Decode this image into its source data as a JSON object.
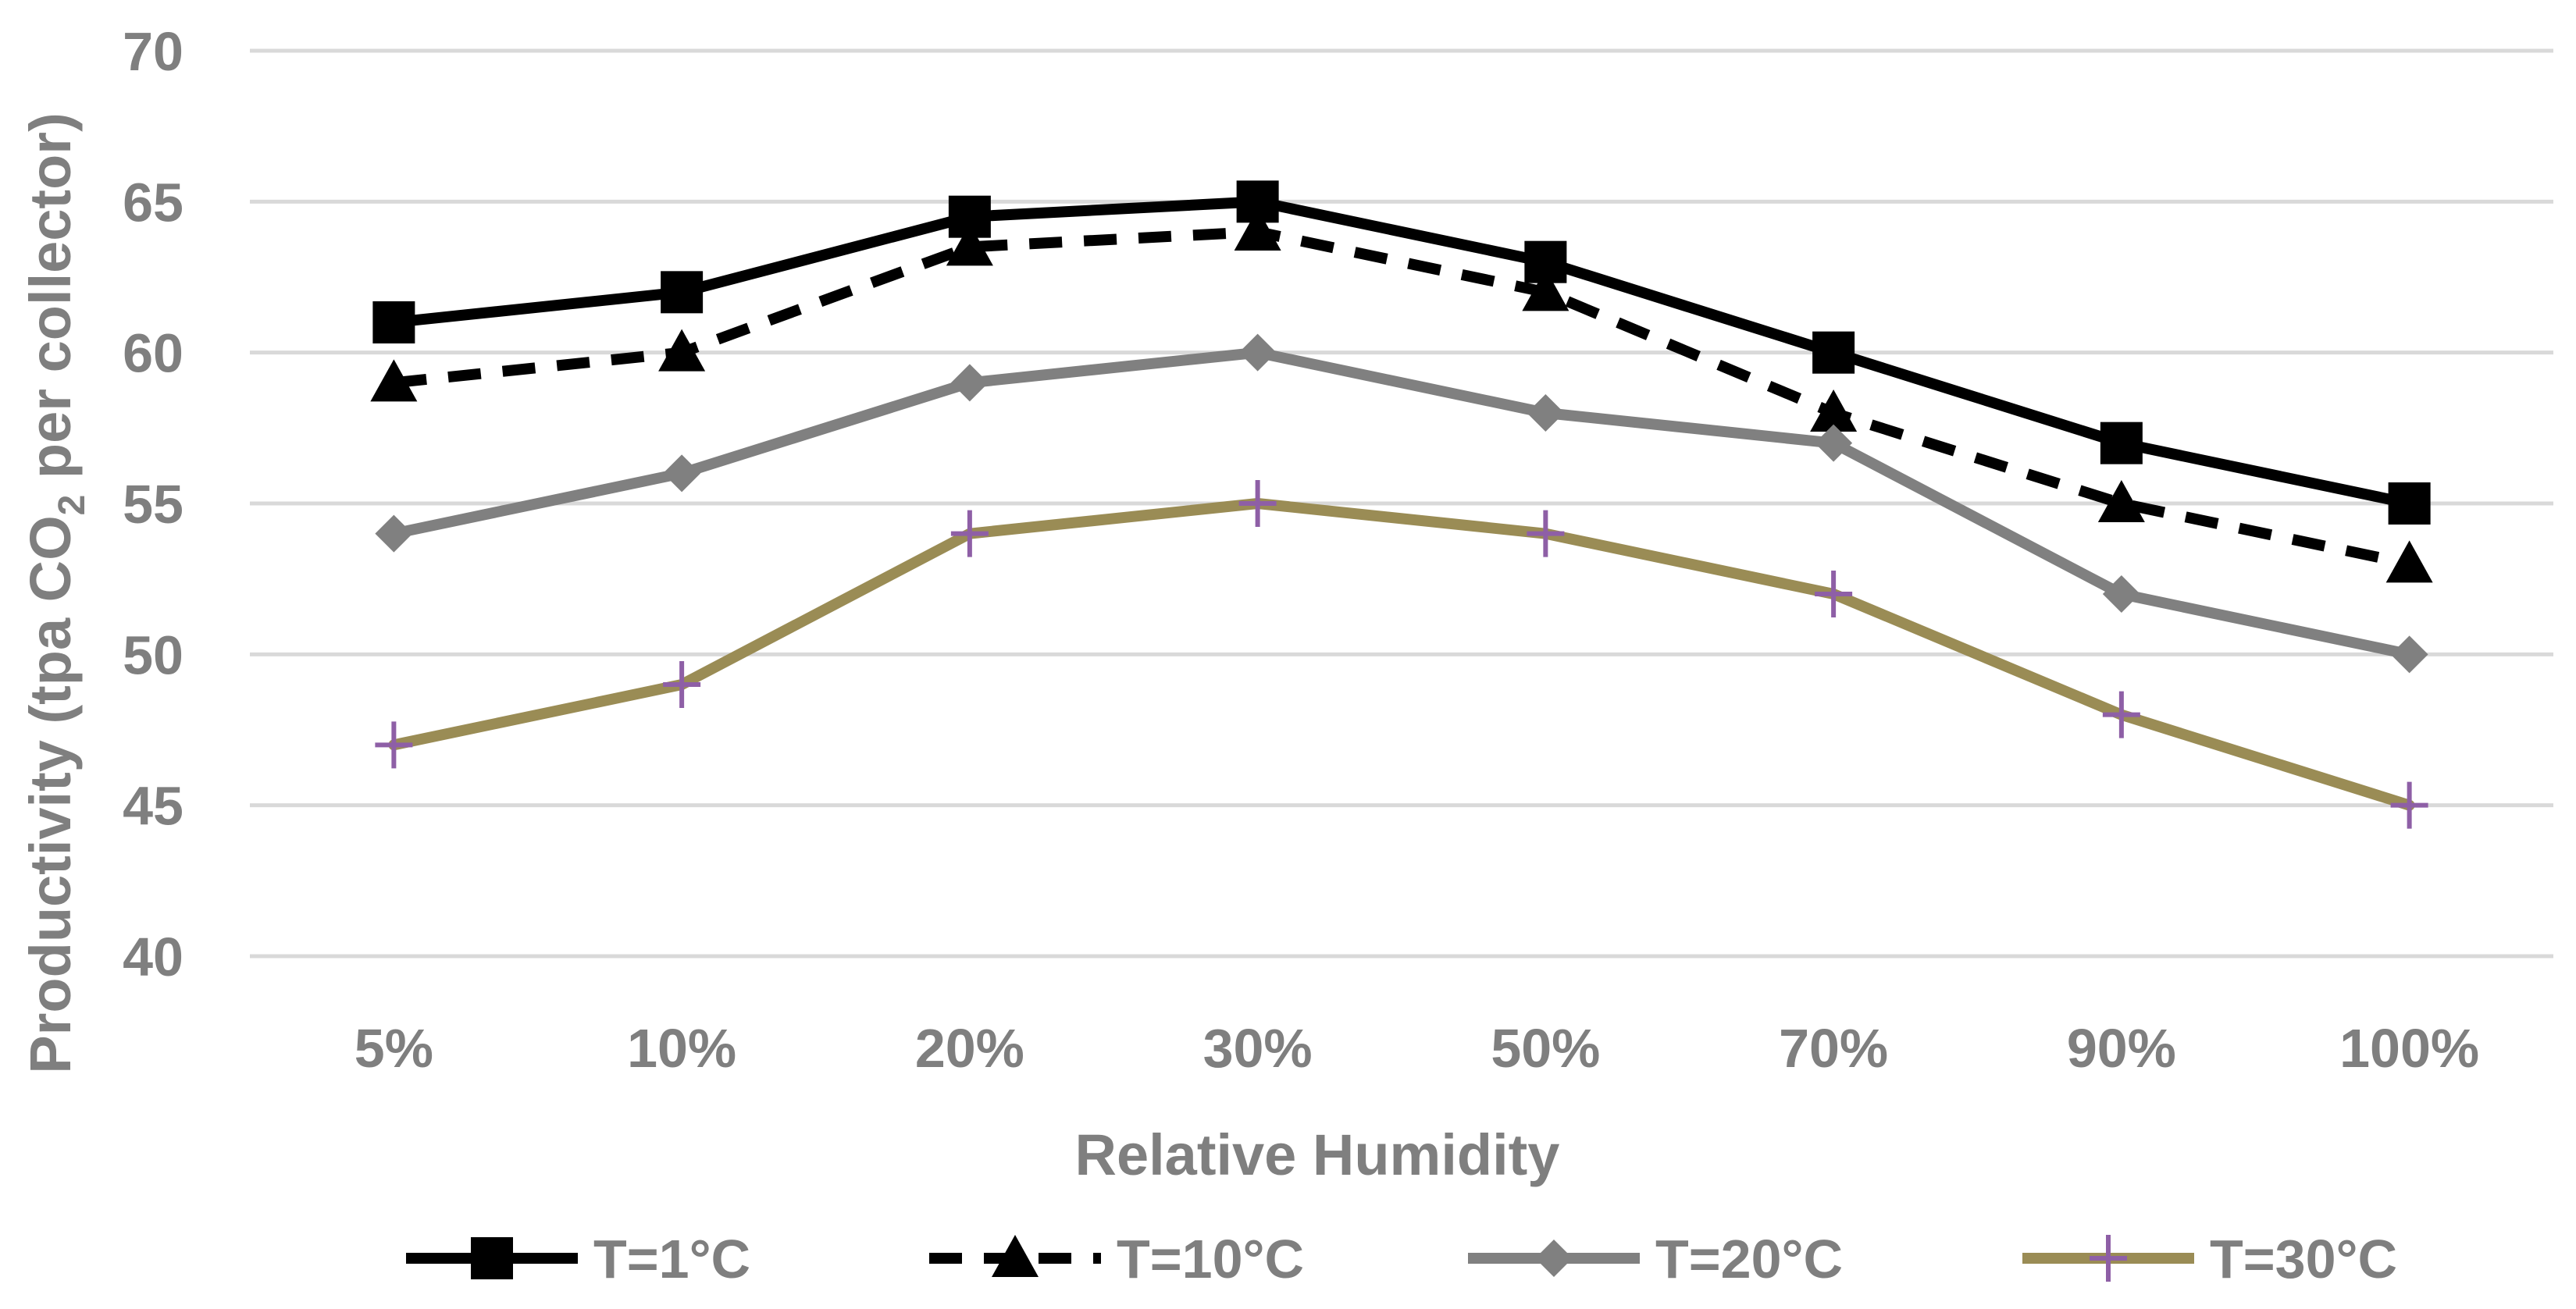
{
  "chart_data": {
    "type": "line",
    "title": "",
    "xlabel": "Relative Humidity",
    "ylabel_main": "Productivity (tpa CO",
    "ylabel_sub": "2",
    "ylabel_tail": " per collector)",
    "ylim": [
      40,
      70
    ],
    "yticks": [
      40,
      45,
      50,
      55,
      60,
      65,
      70
    ],
    "ytick_labels": [
      "40",
      "45",
      "50",
      "55",
      "60",
      "65",
      "70"
    ],
    "grid": true,
    "legend_position": "bottom",
    "categories": [
      "5%",
      "10%",
      "20%",
      "30%",
      "50%",
      "70%",
      "90%",
      "100%"
    ],
    "series": [
      {
        "name": "T=1°C",
        "values": [
          61,
          62,
          64.5,
          65,
          63,
          60,
          57,
          55
        ],
        "color": "#000000",
        "marker": "square",
        "dash": "solid"
      },
      {
        "name": "T=10°C",
        "values": [
          59,
          60,
          63.5,
          64,
          62,
          58,
          55,
          53
        ],
        "color": "#000000",
        "marker": "triangle",
        "dash": "dashed"
      },
      {
        "name": "T=20°C",
        "values": [
          54,
          56,
          59,
          60,
          58,
          57,
          52,
          50
        ],
        "color": "#808080",
        "marker": "diamond",
        "dash": "solid"
      },
      {
        "name": "T=30°C",
        "values": [
          47,
          49,
          54,
          55,
          54,
          52,
          48,
          45
        ],
        "color": "#9a8c55",
        "marker": "plus",
        "dash": "solid",
        "marker_color": "#8e5fa6"
      }
    ]
  }
}
